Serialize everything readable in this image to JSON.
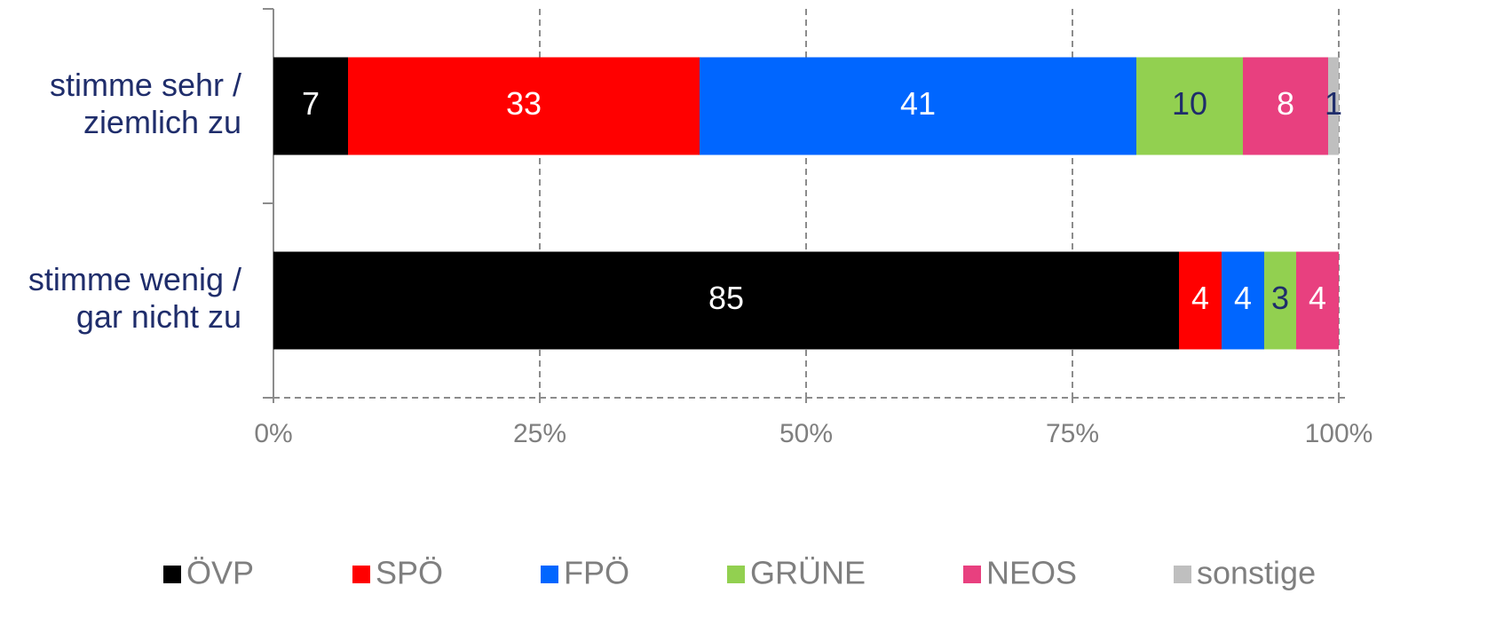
{
  "chart_data": {
    "type": "stacked_barh",
    "categories": [
      [
        "stimme sehr /",
        "ziemlich zu"
      ],
      [
        "stimme wenig /",
        "gar nicht zu"
      ]
    ],
    "series": [
      {
        "name": "ÖVP",
        "color": "#000000",
        "label_color": "#ffffff",
        "values": [
          7,
          85
        ]
      },
      {
        "name": "SPÖ",
        "color": "#ff0000",
        "label_color": "#ffffff",
        "values": [
          33,
          4
        ]
      },
      {
        "name": "FPÖ",
        "color": "#0066ff",
        "label_color": "#ffffff",
        "values": [
          41,
          4
        ]
      },
      {
        "name": "GRÜNE",
        "color": "#92d050",
        "label_color": "#1f2d6b",
        "values": [
          10,
          3
        ]
      },
      {
        "name": "NEOS",
        "color": "#e8407f",
        "label_color": "#ffffff",
        "values": [
          8,
          4
        ]
      },
      {
        "name": "sonstige",
        "color": "#bfbfbf",
        "label_color": "#1f2d6b",
        "values": [
          1,
          null
        ]
      }
    ],
    "xlim": [
      0,
      100
    ],
    "xticks": [
      {
        "value": 0,
        "label": "0%"
      },
      {
        "value": 25,
        "label": "25%"
      },
      {
        "value": 50,
        "label": "50%"
      },
      {
        "value": 75,
        "label": "75%"
      },
      {
        "value": 100,
        "label": "100%"
      }
    ],
    "grid": true,
    "legend": "bottom"
  }
}
